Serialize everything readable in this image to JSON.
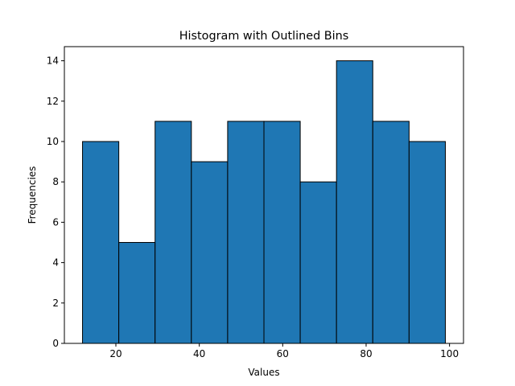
{
  "chart_data": {
    "type": "bar",
    "title": "Histogram with Outlined Bins",
    "xlabel": "Values",
    "ylabel": "Frequencies",
    "bin_edges": [
      12.0,
      20.7,
      29.4,
      38.1,
      46.8,
      55.5,
      64.2,
      72.9,
      81.6,
      90.3,
      99.0
    ],
    "values": [
      10,
      5,
      11,
      9,
      11,
      11,
      8,
      14,
      11,
      10
    ],
    "xlim": [
      7.65,
      103.35
    ],
    "ylim": [
      0,
      14.7
    ],
    "xticks": [
      20,
      40,
      60,
      80,
      100
    ],
    "yticks": [
      0,
      2,
      4,
      6,
      8,
      10,
      12,
      14
    ],
    "bar_color": "#1f77b4",
    "edge_color": "#000000",
    "grid": false,
    "legend": "none"
  }
}
